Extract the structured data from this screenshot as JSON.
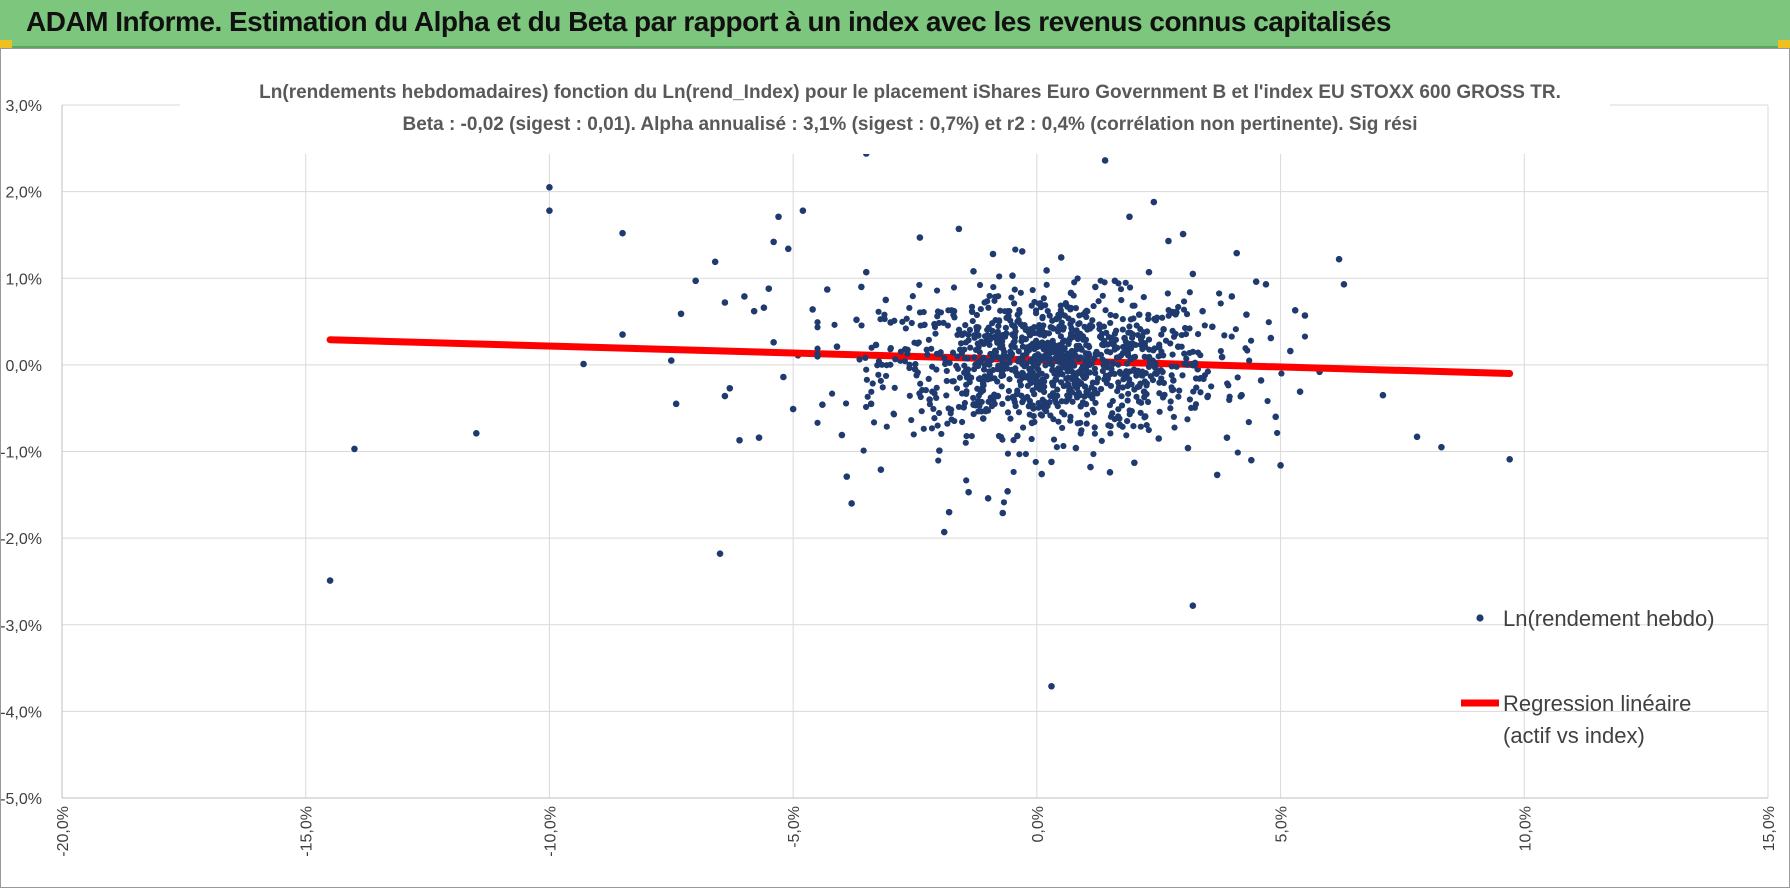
{
  "header": {
    "title": "ADAM Informe. Estimation du Alpha et du Beta par rapport à un index avec les revenus connus capitalisés"
  },
  "colors": {
    "header_bg": "#7dc67d",
    "points": "#1f3a6e",
    "regression": "#ff0000",
    "grid": "#d9d9d9"
  },
  "chart_data": {
    "type": "scatter",
    "title": [
      "Ln(rendements hebdomadaires) fonction du Ln(rend_Index) pour le placement iShares Euro Government B et l'index EU STOXX 600 GROSS TR.",
      "Beta : -0,02 (sigest : 0,01). Alpha annualisé : 3,1% (sigest : 0,7%) et r2 : 0,4% (corrélation non pertinente). Sig rési"
    ],
    "xlim": [
      -0.2,
      0.15
    ],
    "ylim": [
      -0.05,
      0.03
    ],
    "x_ticks": [
      "-20,0%",
      "-15,0%",
      "-10,0%",
      "-5,0%",
      "0,0%",
      "5,0%",
      "10,0%",
      "15,0%"
    ],
    "y_ticks": [
      "3,0%",
      "2,0%",
      "1,0%",
      "0,0%",
      "-1,0%",
      "-2,0%",
      "-3,0%",
      "-4,0%",
      "-5,0%"
    ],
    "grid": true,
    "legend_position": "right",
    "series": [
      {
        "name": "Ln(rendement hebdo)",
        "kind": "points",
        "points": [
          [
            -0.145,
            -0.0249
          ],
          [
            -0.14,
            -0.0097
          ],
          [
            -0.115,
            -0.0079
          ],
          [
            -0.1,
            0.0205
          ],
          [
            -0.1,
            0.0178
          ],
          [
            -0.093,
            0.0001
          ],
          [
            -0.085,
            0.0152
          ],
          [
            -0.085,
            0.0035
          ],
          [
            -0.075,
            0.0005
          ],
          [
            -0.074,
            -0.0045
          ],
          [
            -0.073,
            0.0059
          ],
          [
            -0.07,
            0.0097
          ],
          [
            -0.066,
            0.0119
          ],
          [
            -0.065,
            -0.0218
          ],
          [
            -0.064,
            -0.0036
          ],
          [
            -0.064,
            0.0072
          ],
          [
            -0.063,
            -0.0027
          ],
          [
            -0.061,
            -0.0087
          ],
          [
            -0.06,
            0.0079
          ],
          [
            -0.058,
            0.0062
          ],
          [
            -0.057,
            -0.0084
          ],
          [
            -0.056,
            0.0066
          ],
          [
            -0.055,
            0.0088
          ],
          [
            -0.054,
            0.0142
          ],
          [
            -0.054,
            0.0026
          ],
          [
            -0.053,
            0.0171
          ],
          [
            -0.052,
            -0.0014
          ],
          [
            -0.051,
            0.0134
          ],
          [
            -0.05,
            -0.0051
          ],
          [
            -0.049,
            0.0011
          ],
          [
            -0.048,
            0.0178
          ],
          [
            -0.046,
            0.0064
          ],
          [
            -0.044,
            -0.0046
          ],
          [
            -0.043,
            0.0087
          ],
          [
            -0.041,
            0.0021
          ],
          [
            -0.04,
            -0.0081
          ],
          [
            -0.039,
            -0.0129
          ],
          [
            -0.038,
            -0.016
          ],
          [
            -0.037,
            0.0052
          ],
          [
            -0.036,
            0.009
          ],
          [
            -0.035,
            0.0244
          ],
          [
            -0.035,
            0.0107
          ],
          [
            -0.034,
            -0.0045
          ],
          [
            -0.033,
            0.0023
          ],
          [
            -0.032,
            -0.0121
          ],
          [
            -0.031,
            0.0075
          ],
          [
            -0.03,
            0.0049
          ],
          [
            -0.028,
            0.0005
          ],
          [
            -0.027,
            0.0018
          ],
          [
            -0.025,
            -0.0005
          ],
          [
            -0.024,
            0.0147
          ],
          [
            -0.022,
            -0.004
          ],
          [
            -0.021,
            0.0047
          ],
          [
            -0.02,
            -0.0099
          ],
          [
            -0.019,
            -0.0193
          ],
          [
            -0.018,
            -0.017
          ],
          [
            -0.017,
            0.0062
          ],
          [
            -0.016,
            0.0157
          ],
          [
            -0.015,
            -0.0049
          ],
          [
            -0.014,
            -0.0147
          ],
          [
            -0.013,
            0.0108
          ],
          [
            -0.012,
            0.0034
          ],
          [
            -0.011,
            -0.0062
          ],
          [
            -0.01,
            -0.0154
          ],
          [
            -0.009,
            0.0128
          ],
          [
            -0.008,
            -0.0036
          ],
          [
            -0.007,
            -0.0171
          ],
          [
            -0.006,
            -0.0146
          ],
          [
            -0.005,
            0.0103
          ],
          [
            -0.004,
            -0.0082
          ],
          [
            -0.003,
            0.0131
          ],
          [
            -0.002,
            0.002
          ],
          [
            -0.001,
            -0.0067
          ],
          [
            0.0,
            0.0024
          ],
          [
            0.001,
            -0.0126
          ],
          [
            0.002,
            0.0109
          ],
          [
            0.003,
            -0.0112
          ],
          [
            0.003,
            -0.0371
          ],
          [
            0.004,
            0.0053
          ],
          [
            0.005,
            0.0124
          ],
          [
            0.006,
            -0.0042
          ],
          [
            0.007,
            0.0083
          ],
          [
            0.008,
            -0.0096
          ],
          [
            0.009,
            0.0019
          ],
          [
            0.01,
            0.0061
          ],
          [
            0.011,
            -0.0118
          ],
          [
            0.012,
            0.009
          ],
          [
            0.013,
            0.0044
          ],
          [
            0.014,
            0.0236
          ],
          [
            0.015,
            -0.0124
          ],
          [
            0.016,
            0.0097
          ],
          [
            0.017,
            -0.0069
          ],
          [
            0.018,
            0.0031
          ],
          [
            0.019,
            0.0171
          ],
          [
            0.02,
            -0.0113
          ],
          [
            0.021,
            0.0058
          ],
          [
            0.022,
            -0.0031
          ],
          [
            0.023,
            0.0107
          ],
          [
            0.024,
            0.0188
          ],
          [
            0.025,
            -0.0085
          ],
          [
            0.026,
            0.0041
          ],
          [
            0.027,
            0.0143
          ],
          [
            0.028,
            -0.0018
          ],
          [
            0.029,
            0.0021
          ],
          [
            0.03,
            0.0151
          ],
          [
            0.031,
            -0.0096
          ],
          [
            0.032,
            0.0105
          ],
          [
            0.032,
            -0.0278
          ],
          [
            0.033,
            -0.0005
          ],
          [
            0.034,
            0.0062
          ],
          [
            0.035,
            -0.0037
          ],
          [
            0.036,
            0.0044
          ],
          [
            0.037,
            -0.0127
          ],
          [
            0.038,
            0.0009
          ],
          [
            0.039,
            -0.0084
          ],
          [
            0.04,
            0.0079
          ],
          [
            0.041,
            0.0129
          ],
          [
            0.042,
            -0.0035
          ],
          [
            0.043,
            0.0058
          ],
          [
            0.044,
            -0.011
          ],
          [
            0.045,
            0.0096
          ],
          [
            0.046,
            -0.0018
          ],
          [
            0.047,
            0.0093
          ],
          [
            0.048,
            0.0031
          ],
          [
            0.049,
            -0.006
          ],
          [
            0.05,
            -0.0116
          ],
          [
            0.052,
            0.0016
          ],
          [
            0.053,
            0.0063
          ],
          [
            0.054,
            -0.0031
          ],
          [
            0.055,
            0.0057
          ],
          [
            0.058,
            -0.0008
          ],
          [
            0.062,
            0.0122
          ],
          [
            0.063,
            0.0093
          ],
          [
            0.071,
            -0.0035
          ],
          [
            0.078,
            -0.0083
          ],
          [
            0.083,
            -0.0095
          ],
          [
            0.097,
            -0.0109
          ]
        ]
      },
      {
        "name": "Regression linéaire (actif vs index)",
        "kind": "line",
        "points": [
          [
            -0.145,
            0.0029
          ],
          [
            0.097,
            -0.001
          ]
        ]
      }
    ],
    "legend": {
      "entries": [
        "Ln(rendement hebdo)",
        "Regression linéaire",
        "(actif vs index)"
      ]
    }
  }
}
